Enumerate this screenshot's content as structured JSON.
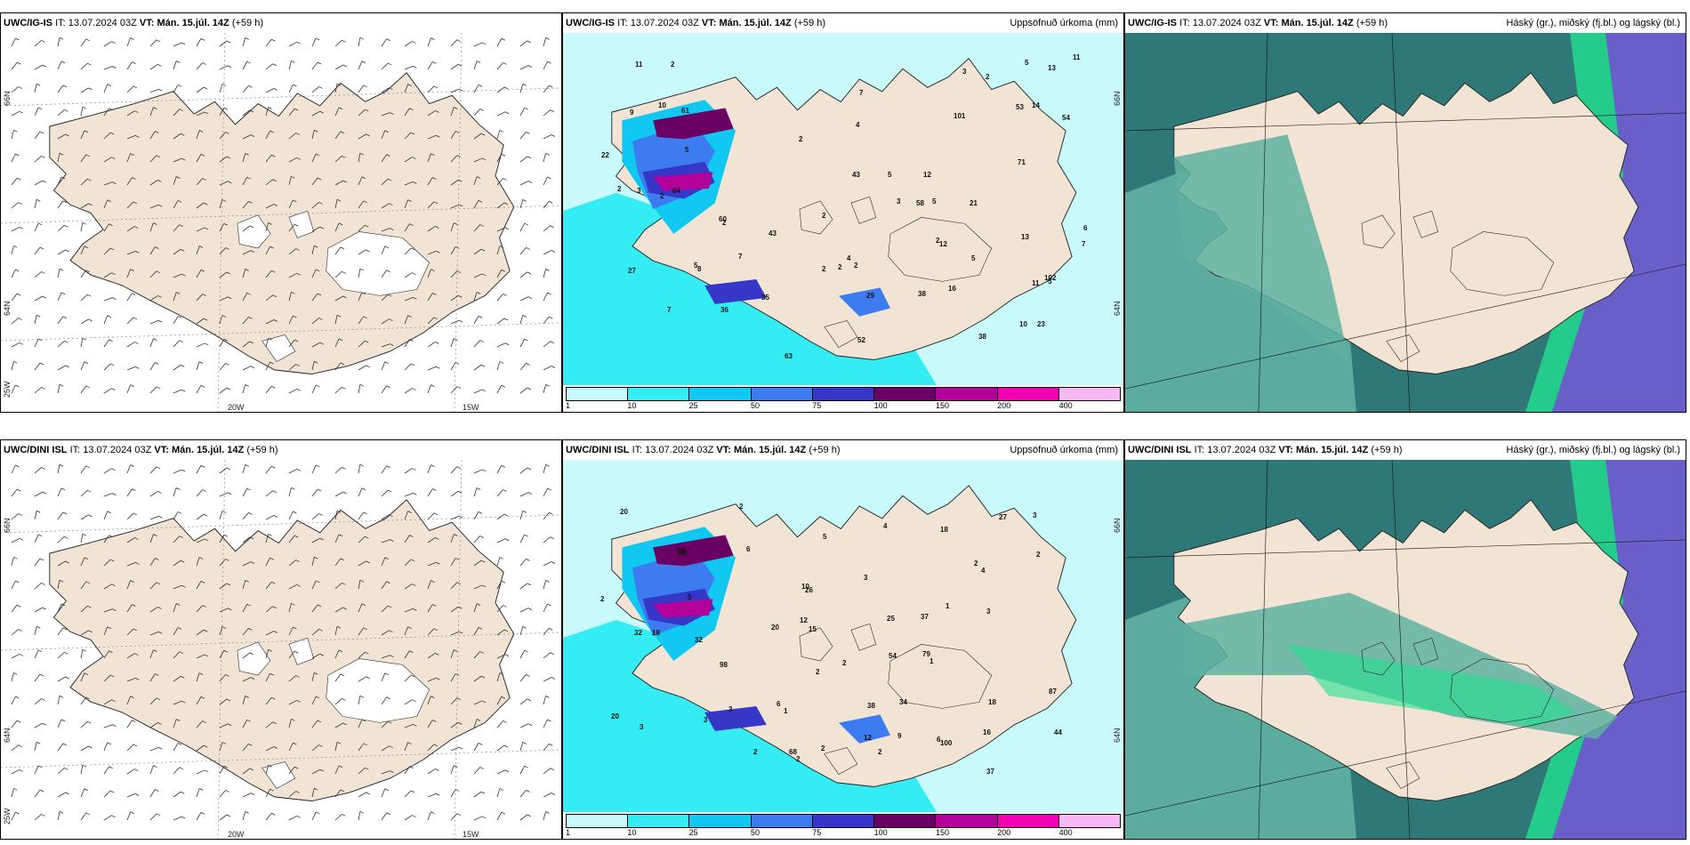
{
  "panels": [
    {
      "id": "r1c1",
      "title_model": "UWC/IG-IS",
      "title_it_label": "IT:",
      "title_it_value": "13.07.2024 03Z",
      "title_vt_label": "VT:",
      "title_vt_value": "Mán. 15.júl. 14Z",
      "title_lead": "(+59 h)",
      "right_label": "",
      "axis_labels": {
        "lat_top": "66N",
        "lat_mid": "64N",
        "lon_left": "25W",
        "lon_a": "20W",
        "lon_b": "15W"
      }
    },
    {
      "id": "r1c2",
      "title_model": "UWC/IG-IS",
      "title_it_label": "IT:",
      "title_it_value": "13.07.2024 03Z",
      "title_vt_label": "VT:",
      "title_vt_value": "Mán. 15.júl. 14Z",
      "title_lead": "(+59 h)",
      "right_label": "Uppsöfnuð úrkoma (mm)",
      "axis_labels": {
        "lat_top": "66N",
        "lat_mid": "64N"
      },
      "values": [
        "6",
        "5",
        "23",
        "5",
        "11",
        "60",
        "53",
        "22",
        "21",
        "8",
        "43",
        "2",
        "16",
        "14",
        "2",
        "9",
        "63",
        "7",
        "7",
        "2",
        "13",
        "4",
        "11",
        "10",
        "2",
        "3",
        "2",
        "3",
        "36",
        "71",
        "5",
        "5",
        "27",
        "2",
        "29",
        "13",
        "3",
        "35",
        "58",
        "52",
        "2",
        "101",
        "61",
        "38",
        "54",
        "5",
        "2",
        "64",
        "5",
        "43",
        "12",
        "2",
        "10",
        "11",
        "102",
        "2",
        "4",
        "12",
        "7",
        "2",
        "5",
        "38",
        "7"
      ]
    },
    {
      "id": "r1c3",
      "title_model": "UWC/IG-IS",
      "title_it_label": "IT:",
      "title_it_value": "13.07.2024 03Z",
      "title_vt_label": "VT:",
      "title_vt_value": "Mán. 15.júl. 14Z",
      "title_lead": "(+59 h)",
      "right_label": "Háský (gr.), miðský (fj.bl.) og lágský (bl.)"
    },
    {
      "id": "r2c1",
      "title_model": "UWC/DINI ISL",
      "title_it_label": "IT:",
      "title_it_value": "13.07.2024 03Z",
      "title_vt_label": "VT:",
      "title_vt_value": "Mán. 15.júl. 14Z",
      "title_lead": "(+59 h)",
      "right_label": "",
      "axis_labels": {
        "lat_top": "66N",
        "lat_mid": "64N",
        "lon_left": "25W",
        "lon_a": "20W",
        "lon_b": "15W"
      }
    },
    {
      "id": "r2c2",
      "title_model": "UWC/DINI ISL",
      "title_it_label": "IT:",
      "title_it_value": "13.07.2024 03Z",
      "title_vt_label": "VT:",
      "title_vt_value": "Mán. 15.júl. 14Z",
      "title_lead": "(+59 h)",
      "right_label": "Uppsöfnuð úrkoma (mm)",
      "axis_labels": {
        "lat_top": "66N",
        "lat_mid": "64N"
      },
      "values": [
        "25",
        "12",
        "16",
        "54",
        "18",
        "20",
        "23",
        "38",
        "37",
        "28",
        "18",
        "18",
        "5",
        "12",
        "6",
        "2",
        "10",
        "37",
        "9",
        "1",
        "79",
        "34",
        "26",
        "3",
        "5",
        "2",
        "1",
        "2",
        "15",
        "27",
        "20",
        "2",
        "1",
        "87",
        "4",
        "68",
        "32",
        "2",
        "98",
        "4",
        "2",
        "3",
        "44",
        "6",
        "6",
        "2",
        "3",
        "2",
        "3",
        "2",
        "100",
        "3",
        "2",
        "3",
        "32",
        "20"
      ]
    },
    {
      "id": "r2c3",
      "title_model": "UWC/DINI ISL",
      "title_it_label": "IT:",
      "title_it_value": "13.07.2024 03Z",
      "title_vt_label": "VT:",
      "title_vt_value": "Mán. 15.júl. 14Z",
      "title_lead": "(+59 h)",
      "right_label": "Háský (gr.), miðský (fj.bl.) og lágský (bl.)"
    }
  ],
  "precip_legend": {
    "colors": [
      "#c8fafc",
      "#34ecf4",
      "#10c8f0",
      "#3c7cf0",
      "#3636c8",
      "#6a0064",
      "#b4009a",
      "#f000b0",
      "#f8b8f4"
    ],
    "ticks": [
      "1",
      "10",
      "25",
      "50",
      "75",
      "100",
      "150",
      "200",
      "400"
    ]
  },
  "colors": {
    "land": "#f2e4d4",
    "cloud_high": "#2e7878",
    "cloud_mid": "#5fb2a0",
    "cloud_green": "#22e090",
    "cloud_low": "#6860c8"
  }
}
